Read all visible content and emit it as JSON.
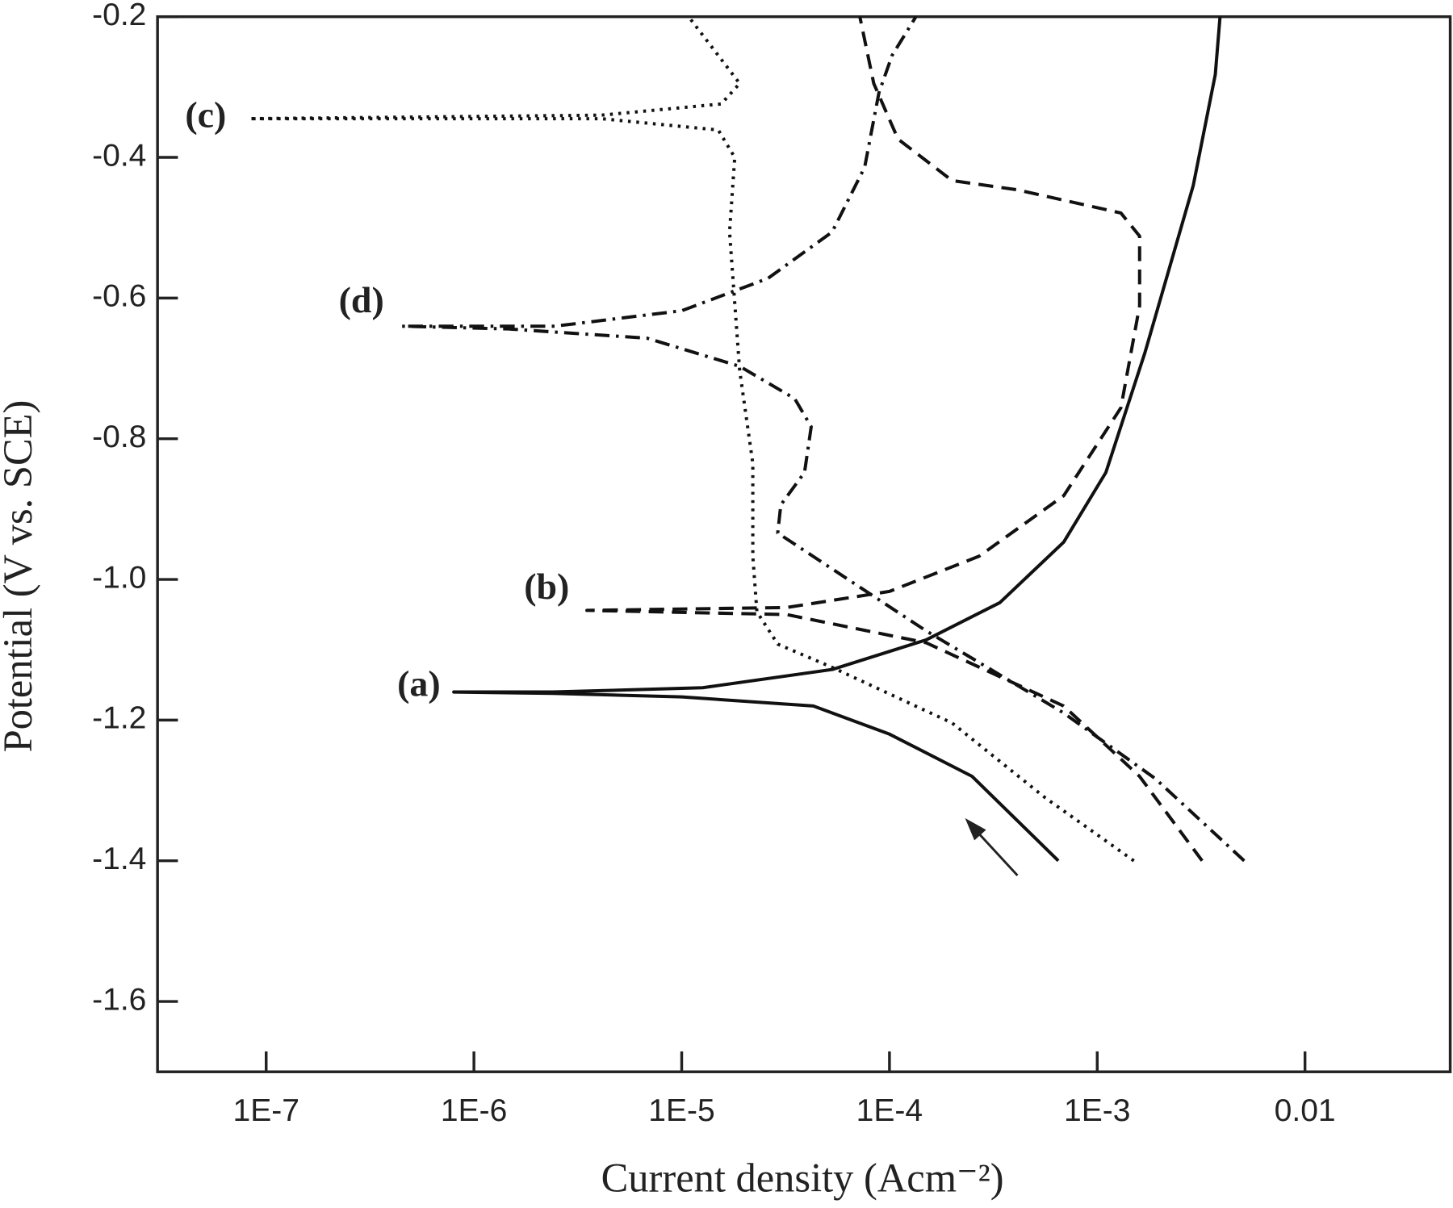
{
  "chart_data": {
    "type": "line",
    "x_scale": "log",
    "xlabel": "Current density (Acm⁻²)",
    "ylabel": "Potential (V vs. SCE)",
    "xlim": [
      3e-08,
      0.05
    ],
    "ylim": [
      -1.7,
      -0.2
    ],
    "xticks": [
      {
        "value": 1e-07,
        "label": "1E-7"
      },
      {
        "value": 1e-06,
        "label": "1E-6"
      },
      {
        "value": 1e-05,
        "label": "1E-5"
      },
      {
        "value": 0.0001,
        "label": "1E-4"
      },
      {
        "value": 0.001,
        "label": "1E-3"
      },
      0.01
    ],
    "yticks": [
      -0.2,
      -0.4,
      -0.6,
      -0.8,
      {
        "value": -1,
        "label": "-1.0"
      },
      -1.2,
      -1.4,
      -1.6
    ],
    "grid": false,
    "series": [
      {
        "name": "(a)",
        "color": "#111111",
        "dash": "solid",
        "x": [
          0.00065,
          0.00025,
          0.0001,
          4.3e-05,
          1e-05,
          2.4e-06,
          8e-07,
          2.4e-06,
          1.26e-05,
          5.3e-05,
          0.00015,
          0.00034,
          0.00069,
          0.0011,
          0.0017,
          0.0029,
          0.0037,
          0.0039
        ],
        "values": [
          -1.4,
          -1.28,
          -1.22,
          -1.18,
          -1.167,
          -1.162,
          -1.16,
          -1.16,
          -1.154,
          -1.128,
          -1.086,
          -1.033,
          -0.947,
          -0.848,
          -0.677,
          -0.44,
          -0.282,
          -0.2
        ]
      },
      {
        "name": "(b)",
        "color": "#111111",
        "dash": "dash",
        "x": [
          0.0032,
          0.0016,
          0.00069,
          0.00015,
          3.2e-05,
          3.5e-06,
          3.2e-05,
          0.0001,
          0.00027,
          0.00069,
          0.0013,
          0.0016,
          0.0016,
          0.0013,
          0.00041,
          0.0002,
          0.00011,
          8.4e-05,
          7.2e-05
        ],
        "values": [
          -1.4,
          -1.28,
          -1.18,
          -1.09,
          -1.05,
          -1.044,
          -1.04,
          -1.017,
          -0.967,
          -0.881,
          -0.756,
          -0.611,
          -0.512,
          -0.479,
          -0.446,
          -0.433,
          -0.374,
          -0.295,
          -0.2
        ]
      },
      {
        "name": "(c)",
        "color": "#111111",
        "dash": "dot",
        "x": [
          0.0015,
          0.00056,
          0.0002,
          5.3e-05,
          2.9e-05,
          2.3e-05,
          2.2e-05,
          2.2e-05,
          1.9e-05,
          1.7e-05,
          1.8e-05,
          1.5e-05,
          4.1e-06,
          8.3e-08,
          4.1e-06,
          1.55e-05,
          1.9e-05,
          1.5e-05,
          1.08e-05
        ],
        "values": [
          -1.4,
          -1.31,
          -1.204,
          -1.125,
          -1.092,
          -1.046,
          -0.967,
          -0.835,
          -0.703,
          -0.506,
          -0.4,
          -0.361,
          -0.345,
          -0.345,
          -0.34,
          -0.324,
          -0.295,
          -0.255,
          -0.2
        ]
      },
      {
        "name": "(d)",
        "color": "#111111",
        "dash": "dashdot",
        "x": [
          0.0051,
          0.0019,
          0.00069,
          0.00015,
          2.9e-05,
          3e-05,
          3.9e-05,
          4.2e-05,
          3.5e-05,
          1.9e-05,
          6.8e-06,
          1.47e-06,
          4.5e-07,
          2.45e-06,
          1e-05,
          2.6e-05,
          5.3e-05,
          7.6e-05,
          8.9e-05,
          0.000103,
          0.000134
        ],
        "values": [
          -1.4,
          -1.283,
          -1.19,
          -1.073,
          -0.934,
          -0.894,
          -0.848,
          -0.783,
          -0.743,
          -0.697,
          -0.657,
          -0.644,
          -0.64,
          -0.64,
          -0.618,
          -0.572,
          -0.506,
          -0.414,
          -0.308,
          -0.255,
          -0.2
        ]
      }
    ]
  }
}
